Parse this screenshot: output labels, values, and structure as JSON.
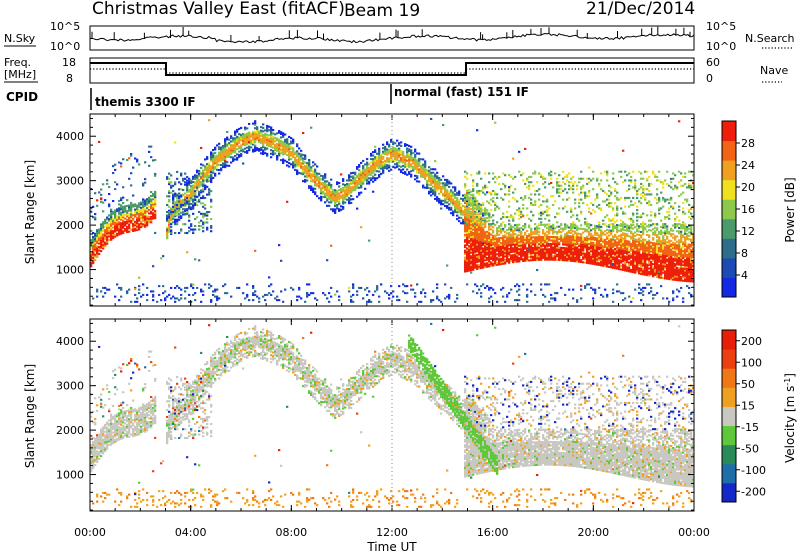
{
  "header": {
    "station": "Christmas Valley East (fitACF)",
    "beam": "Beam 19",
    "date": "21/Dec/2014"
  },
  "top_panels": {
    "nsky_label": "N.Sky",
    "nsearch_label": "N.Search",
    "noise_ticks": [
      "10^5",
      "10^0"
    ],
    "freq_label_line1": "Freq.",
    "freq_label_line2": "[MHz]",
    "freq_ticks": [
      "18",
      "8"
    ],
    "nave_label": "Nave",
    "nave_ticks": [
      "60",
      "0"
    ],
    "cpid_label": "CPID",
    "cpid_segments": [
      {
        "label": "themis 3300 IF",
        "start_hour": 0,
        "end_hour": 12
      },
      {
        "label": "normal (fast) 151 IF",
        "start_hour": 12,
        "end_hour": 24
      }
    ]
  },
  "chart_data": [
    {
      "type": "heatmap",
      "name": "power",
      "ylabel": "Slant Range [km]",
      "xlabel": "Time UT",
      "x_ticks": [
        "00:00",
        "04:00",
        "08:00",
        "12:00",
        "16:00",
        "20:00",
        "00:00"
      ],
      "y_ticks": [
        1000,
        2000,
        3000,
        4000
      ],
      "xlim_hours": [
        0,
        24
      ],
      "ylim_km": [
        180,
        4500
      ],
      "colorbar_label": "Power [dB]",
      "colorbar_ticks": [
        4,
        8,
        12,
        16,
        20,
        24,
        28
      ],
      "colorbar_range": [
        0,
        32
      ],
      "colors": [
        "#1428e6",
        "#1e4ab4",
        "#2e6e8a",
        "#4a9a6a",
        "#8cc84c",
        "#f0e020",
        "#f0a020",
        "#f06414",
        "#ee1e0a"
      ]
    },
    {
      "type": "heatmap",
      "name": "velocity",
      "ylabel": "Slant Range [km]",
      "xlabel": "Time UT",
      "x_ticks": [
        "00:00",
        "04:00",
        "08:00",
        "12:00",
        "16:00",
        "20:00",
        "00:00"
      ],
      "y_ticks": [
        1000,
        2000,
        3000,
        4000
      ],
      "xlim_hours": [
        0,
        24
      ],
      "ylim_km": [
        180,
        4500
      ],
      "colorbar_label": "Velocity [m s^-1]",
      "colorbar_ticks": [
        200,
        100,
        50,
        15,
        -15,
        -50,
        -100,
        -200
      ],
      "colorbar_range": [
        -250,
        250
      ],
      "colors": [
        "#1428c8",
        "#1e6eaa",
        "#2a8a5a",
        "#5ec83a",
        "#c8c8c0",
        "#f0a020",
        "#f07814",
        "#ec4010",
        "#e61e0a"
      ]
    }
  ]
}
